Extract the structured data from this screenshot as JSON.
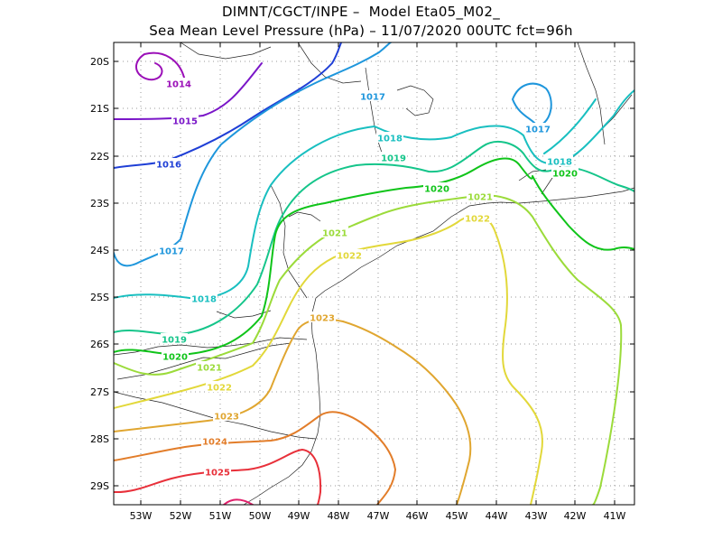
{
  "header": {
    "title_line1": "DIMNT/CGCT/INPE –  Model Eta05_M02_",
    "title_line2": "Sea Mean Level Pressure (hPa) – 11/07/2020 00UTC fct=96h"
  },
  "axes": {
    "lat_labels": [
      "20S",
      "21S",
      "22S",
      "23S",
      "24S",
      "25S",
      "26S",
      "27S",
      "28S",
      "29S"
    ],
    "lon_labels": [
      "53W",
      "52W",
      "51W",
      "50W",
      "49W",
      "48W",
      "47W",
      "46W",
      "45W",
      "44W",
      "43W",
      "42W",
      "41W"
    ]
  },
  "contours": [
    {
      "value": "1014",
      "color": "#9b0fb8"
    },
    {
      "value": "1015",
      "color": "#7a16c8"
    },
    {
      "value": "1016",
      "color": "#1f3fd6"
    },
    {
      "value": "1017",
      "color": "#1e96dc"
    },
    {
      "value": "1018",
      "color": "#19bfc0"
    },
    {
      "value": "1019",
      "color": "#15c58a"
    },
    {
      "value": "1020",
      "color": "#10c41a"
    },
    {
      "value": "1021",
      "color": "#9bdb3a"
    },
    {
      "value": "1022",
      "color": "#e2d83a"
    },
    {
      "value": "1023",
      "color": "#e0a630"
    },
    {
      "value": "1024",
      "color": "#e27d2a"
    },
    {
      "value": "1025",
      "color": "#e8303a"
    }
  ]
}
